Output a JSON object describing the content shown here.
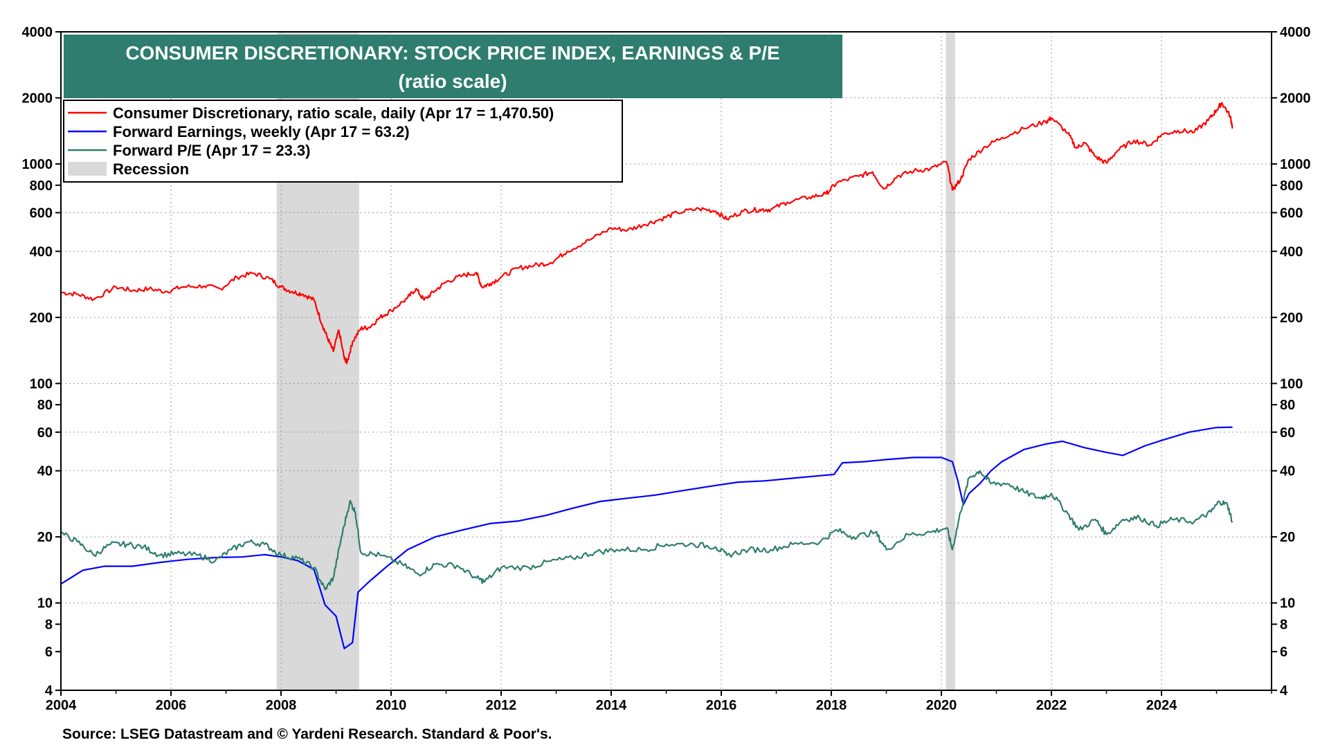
{
  "chart_data": {
    "type": "line",
    "title": "CONSUMER DISCRETIONARY: STOCK PRICE INDEX, EARNINGS & P/E",
    "subtitle": "(ratio scale)",
    "source": "Source: LSEG Datastream and © Yardeni Research. Standard & Poor's.",
    "x_range": [
      2004,
      2026.0
    ],
    "y_scale": "log",
    "ylim": [
      4,
      4000
    ],
    "x_ticks": [
      "2004",
      "2006",
      "2008",
      "2010",
      "2012",
      "2014",
      "2016",
      "2018",
      "2020",
      "2022",
      "2024"
    ],
    "y_ticks": [
      {
        "value": 4,
        "label": "4"
      },
      {
        "value": 6,
        "label": "6"
      },
      {
        "value": 8,
        "label": "8"
      },
      {
        "value": 10,
        "label": "10"
      },
      {
        "value": 20,
        "label": "20"
      },
      {
        "value": 40,
        "label": "40"
      },
      {
        "value": 60,
        "label": "60"
      },
      {
        "value": 80,
        "label": "80"
      },
      {
        "value": 100,
        "label": "100"
      },
      {
        "value": 200,
        "label": "200"
      },
      {
        "value": 400,
        "label": "400"
      },
      {
        "value": 600,
        "label": "600"
      },
      {
        "value": 800,
        "label": "800"
      },
      {
        "value": 1000,
        "label": "1000"
      },
      {
        "value": 2000,
        "label": "2000"
      },
      {
        "value": 4000,
        "label": "4000"
      }
    ],
    "recessions": [
      {
        "start": 2007.92,
        "end": 2009.42
      },
      {
        "start": 2020.08,
        "end": 2020.25
      }
    ],
    "legend": [
      {
        "label": "Consumer Discretionary, ratio scale, daily (Apr 17 = 1,470.50)",
        "color": "#ff0000",
        "kind": "line"
      },
      {
        "label": "Forward Earnings, weekly (Apr 17 = 63.2)",
        "color": "#0000ff",
        "kind": "line"
      },
      {
        "label": "Forward P/E (Apr 17 = 23.3)",
        "color": "#2e7d6e",
        "kind": "line"
      },
      {
        "label": "Recession",
        "color": "#d9d9d9",
        "kind": "patch"
      }
    ],
    "series": [
      {
        "name": "Consumer Discretionary",
        "color": "#ff0000",
        "points": [
          [
            2004.0,
            260
          ],
          [
            2004.3,
            255
          ],
          [
            2004.6,
            242
          ],
          [
            2005.0,
            275
          ],
          [
            2005.3,
            265
          ],
          [
            2005.6,
            270
          ],
          [
            2005.9,
            262
          ],
          [
            2006.2,
            275
          ],
          [
            2006.6,
            278
          ],
          [
            2006.9,
            270
          ],
          [
            2007.2,
            305
          ],
          [
            2007.5,
            318
          ],
          [
            2007.8,
            300
          ],
          [
            2008.0,
            275
          ],
          [
            2008.2,
            262
          ],
          [
            2008.4,
            255
          ],
          [
            2008.6,
            240
          ],
          [
            2008.75,
            185
          ],
          [
            2008.85,
            160
          ],
          [
            2008.95,
            140
          ],
          [
            2009.05,
            175
          ],
          [
            2009.15,
            130
          ],
          [
            2009.2,
            125
          ],
          [
            2009.3,
            155
          ],
          [
            2009.45,
            178
          ],
          [
            2009.6,
            180
          ],
          [
            2009.8,
            200
          ],
          [
            2010.0,
            215
          ],
          [
            2010.3,
            245
          ],
          [
            2010.45,
            270
          ],
          [
            2010.6,
            240
          ],
          [
            2010.8,
            265
          ],
          [
            2011.0,
            290
          ],
          [
            2011.3,
            310
          ],
          [
            2011.55,
            320
          ],
          [
            2011.65,
            275
          ],
          [
            2011.8,
            285
          ],
          [
            2012.0,
            305
          ],
          [
            2012.3,
            335
          ],
          [
            2012.6,
            345
          ],
          [
            2012.9,
            355
          ],
          [
            2013.2,
            400
          ],
          [
            2013.6,
            450
          ],
          [
            2014.0,
            510
          ],
          [
            2014.3,
            500
          ],
          [
            2014.6,
            530
          ],
          [
            2014.9,
            560
          ],
          [
            2015.2,
            600
          ],
          [
            2015.6,
            625
          ],
          [
            2015.9,
            610
          ],
          [
            2016.1,
            560
          ],
          [
            2016.4,
            610
          ],
          [
            2016.7,
            620
          ],
          [
            2016.9,
            620
          ],
          [
            2017.2,
            670
          ],
          [
            2017.6,
            705
          ],
          [
            2017.9,
            730
          ],
          [
            2018.1,
            820
          ],
          [
            2018.5,
            880
          ],
          [
            2018.75,
            920
          ],
          [
            2018.95,
            770
          ],
          [
            2019.2,
            880
          ],
          [
            2019.5,
            930
          ],
          [
            2019.8,
            950
          ],
          [
            2020.1,
            1020
          ],
          [
            2020.2,
            760
          ],
          [
            2020.35,
            850
          ],
          [
            2020.5,
            1050
          ],
          [
            2020.8,
            1200
          ],
          [
            2021.1,
            1320
          ],
          [
            2021.5,
            1450
          ],
          [
            2021.9,
            1560
          ],
          [
            2022.0,
            1620
          ],
          [
            2022.3,
            1380
          ],
          [
            2022.45,
            1180
          ],
          [
            2022.6,
            1250
          ],
          [
            2022.8,
            1080
          ],
          [
            2023.0,
            1010
          ],
          [
            2023.2,
            1150
          ],
          [
            2023.5,
            1280
          ],
          [
            2023.8,
            1220
          ],
          [
            2024.0,
            1360
          ],
          [
            2024.3,
            1420
          ],
          [
            2024.6,
            1400
          ],
          [
            2024.85,
            1580
          ],
          [
            2025.0,
            1760
          ],
          [
            2025.1,
            1900
          ],
          [
            2025.25,
            1650
          ],
          [
            2025.29,
            1470
          ]
        ]
      },
      {
        "name": "Forward Earnings",
        "color": "#0000ff",
        "points": [
          [
            2004.0,
            12.2
          ],
          [
            2004.4,
            14.1
          ],
          [
            2004.8,
            14.7
          ],
          [
            2005.3,
            14.7
          ],
          [
            2005.8,
            15.3
          ],
          [
            2006.3,
            15.8
          ],
          [
            2006.8,
            16.1
          ],
          [
            2007.3,
            16.2
          ],
          [
            2007.7,
            16.6
          ],
          [
            2008.0,
            16.2
          ],
          [
            2008.3,
            15.6
          ],
          [
            2008.6,
            14.2
          ],
          [
            2008.8,
            9.8
          ],
          [
            2009.0,
            8.7
          ],
          [
            2009.15,
            6.2
          ],
          [
            2009.3,
            6.6
          ],
          [
            2009.4,
            11.2
          ],
          [
            2009.6,
            12.5
          ],
          [
            2009.9,
            14.5
          ],
          [
            2010.3,
            17.5
          ],
          [
            2010.8,
            20.0
          ],
          [
            2011.3,
            21.5
          ],
          [
            2011.8,
            23.0
          ],
          [
            2012.3,
            23.6
          ],
          [
            2012.8,
            25.0
          ],
          [
            2013.3,
            27.0
          ],
          [
            2013.8,
            29.0
          ],
          [
            2014.3,
            30.0
          ],
          [
            2014.8,
            31.0
          ],
          [
            2015.3,
            32.5
          ],
          [
            2015.8,
            34.0
          ],
          [
            2016.3,
            35.5
          ],
          [
            2016.8,
            36.0
          ],
          [
            2017.3,
            37.0
          ],
          [
            2017.8,
            38.0
          ],
          [
            2018.05,
            38.5
          ],
          [
            2018.2,
            43.5
          ],
          [
            2018.6,
            44.0
          ],
          [
            2019.0,
            45.0
          ],
          [
            2019.5,
            46.0
          ],
          [
            2020.0,
            46.0
          ],
          [
            2020.2,
            44.0
          ],
          [
            2020.3,
            36.0
          ],
          [
            2020.4,
            28.0
          ],
          [
            2020.5,
            31.5
          ],
          [
            2020.7,
            35.0
          ],
          [
            2020.9,
            40.0
          ],
          [
            2021.1,
            44.0
          ],
          [
            2021.5,
            50.0
          ],
          [
            2021.9,
            53.0
          ],
          [
            2022.2,
            54.5
          ],
          [
            2022.6,
            51.0
          ],
          [
            2023.0,
            48.5
          ],
          [
            2023.3,
            47.0
          ],
          [
            2023.7,
            52.0
          ],
          [
            2024.0,
            55.0
          ],
          [
            2024.5,
            60.0
          ],
          [
            2025.0,
            63.0
          ],
          [
            2025.29,
            63.2
          ]
        ]
      },
      {
        "name": "Forward P/E",
        "color": "#2e7d6e",
        "points": [
          [
            2004.0,
            20.8
          ],
          [
            2004.3,
            19.0
          ],
          [
            2004.6,
            16.5
          ],
          [
            2004.9,
            18.5
          ],
          [
            2005.2,
            18.5
          ],
          [
            2005.5,
            18.0
          ],
          [
            2005.8,
            16.5
          ],
          [
            2006.1,
            16.8
          ],
          [
            2006.5,
            16.5
          ],
          [
            2006.8,
            15.5
          ],
          [
            2007.1,
            17.5
          ],
          [
            2007.4,
            19.0
          ],
          [
            2007.7,
            18.5
          ],
          [
            2008.0,
            16.5
          ],
          [
            2008.3,
            16.0
          ],
          [
            2008.6,
            14.5
          ],
          [
            2008.8,
            11.5
          ],
          [
            2008.95,
            13.0
          ],
          [
            2009.1,
            20.0
          ],
          [
            2009.25,
            29.0
          ],
          [
            2009.35,
            26.0
          ],
          [
            2009.45,
            17.0
          ],
          [
            2009.8,
            16.5
          ],
          [
            2010.2,
            15.0
          ],
          [
            2010.5,
            13.5
          ],
          [
            2010.8,
            15.0
          ],
          [
            2011.2,
            14.8
          ],
          [
            2011.55,
            13.0
          ],
          [
            2011.7,
            12.5
          ],
          [
            2012.0,
            14.5
          ],
          [
            2012.5,
            14.5
          ],
          [
            2012.9,
            15.5
          ],
          [
            2013.3,
            16.0
          ],
          [
            2013.7,
            17.0
          ],
          [
            2014.1,
            17.5
          ],
          [
            2014.6,
            17.5
          ],
          [
            2015.0,
            18.5
          ],
          [
            2015.5,
            18.5
          ],
          [
            2015.9,
            18.0
          ],
          [
            2016.1,
            16.5
          ],
          [
            2016.5,
            17.5
          ],
          [
            2016.9,
            17.5
          ],
          [
            2017.3,
            18.5
          ],
          [
            2017.8,
            19.0
          ],
          [
            2018.1,
            21.5
          ],
          [
            2018.4,
            20.0
          ],
          [
            2018.8,
            21.0
          ],
          [
            2019.0,
            17.5
          ],
          [
            2019.4,
            20.5
          ],
          [
            2019.8,
            21.0
          ],
          [
            2020.1,
            22.0
          ],
          [
            2020.2,
            17.5
          ],
          [
            2020.35,
            26.0
          ],
          [
            2020.5,
            37.0
          ],
          [
            2020.7,
            40.0
          ],
          [
            2020.9,
            35.0
          ],
          [
            2021.2,
            35.0
          ],
          [
            2021.5,
            32.0
          ],
          [
            2021.8,
            30.0
          ],
          [
            2022.0,
            31.5
          ],
          [
            2022.3,
            25.5
          ],
          [
            2022.5,
            21.5
          ],
          [
            2022.8,
            24.0
          ],
          [
            2023.0,
            20.5
          ],
          [
            2023.3,
            24.0
          ],
          [
            2023.6,
            24.5
          ],
          [
            2023.9,
            22.5
          ],
          [
            2024.2,
            24.0
          ],
          [
            2024.6,
            23.5
          ],
          [
            2024.9,
            26.0
          ],
          [
            2025.05,
            29.0
          ],
          [
            2025.2,
            28.0
          ],
          [
            2025.29,
            23.3
          ]
        ]
      }
    ]
  }
}
